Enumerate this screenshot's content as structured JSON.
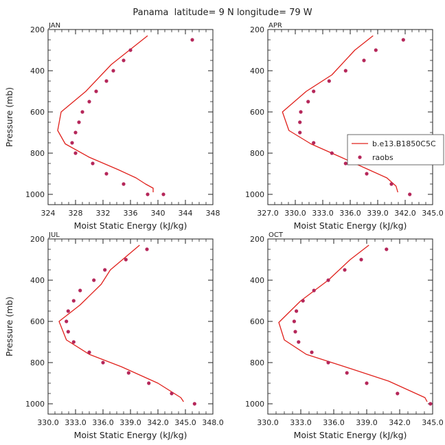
{
  "title": "Panama  latitude= 9 N longitude= 79 W",
  "colors": {
    "model": "#e0201b",
    "obs": "#b5275a",
    "axis": "#222222"
  },
  "legend": {
    "model_label": "b.e13.B1850C5C",
    "obs_label": "raobs"
  },
  "chart_data": [
    {
      "type": "line",
      "panel": "JAN",
      "xlabel": "Moist Static Energy (kJ/kg)",
      "ylabel": "Pressure (mb)",
      "xlim": [
        324,
        348
      ],
      "ylim": [
        1050,
        200
      ],
      "x_ticks": [
        324,
        328,
        332,
        336,
        340,
        344,
        348
      ],
      "x_tick_labels": [
        "324",
        "328",
        "332",
        "336",
        "340",
        "344",
        "348"
      ],
      "y_ticks": [
        200,
        400,
        600,
        800,
        1000
      ],
      "y_tick_labels": [
        "200",
        "400",
        "600",
        "800",
        "1000"
      ],
      "series": [
        {
          "name": "b.e13.B1850C5C",
          "kind": "line",
          "x": [
            338.5,
            333.2,
            329.5,
            325.9,
            325.4,
            326.5,
            330.0,
            334.2,
            336.8,
            338.2,
            339.3,
            339.3
          ],
          "y": [
            230,
            370,
            500,
            600,
            690,
            755,
            820,
            880,
            920,
            950,
            970,
            990
          ]
        },
        {
          "name": "raobs",
          "kind": "scatter",
          "x": [
            345.0,
            336.0,
            335.0,
            333.5,
            332.5,
            331.0,
            330.0,
            329.0,
            328.5,
            328.0,
            327.5,
            328.0,
            330.5,
            332.5,
            335.0,
            338.5,
            340.8
          ],
          "y": [
            250,
            300,
            350,
            400,
            450,
            500,
            550,
            600,
            650,
            700,
            750,
            800,
            850,
            900,
            950,
            1000,
            1000
          ]
        }
      ]
    },
    {
      "type": "line",
      "panel": "APR",
      "xlabel": "Moist Static Energy (kJ/kg)",
      "ylabel": "",
      "xlim": [
        327,
        345
      ],
      "ylim": [
        1050,
        200
      ],
      "x_ticks": [
        327,
        330,
        333,
        336,
        339,
        342,
        345
      ],
      "x_tick_labels": [
        "327.0",
        "330.0",
        "333.0",
        "336.0",
        "339.0",
        "342.0",
        "345.0"
      ],
      "y_ticks": [
        200,
        400,
        600,
        800,
        1000
      ],
      "y_tick_labels": [
        "200",
        "400",
        "600",
        "800",
        "1000"
      ],
      "series": [
        {
          "name": "b.e13.B1850C5C",
          "kind": "line",
          "x": [
            338.5,
            336.5,
            334.0,
            331.2,
            328.6,
            329.3,
            331.7,
            335.0,
            338.0,
            340.0,
            341.0,
            341.2
          ],
          "y": [
            230,
            300,
            420,
            500,
            600,
            690,
            755,
            820,
            880,
            920,
            960,
            990
          ]
        },
        {
          "name": "raobs",
          "kind": "scatter",
          "x": [
            341.8,
            338.8,
            337.5,
            335.5,
            333.7,
            332.0,
            331.4,
            330.6,
            330.5,
            330.5,
            332.0,
            334.0,
            335.5,
            337.8,
            340.5,
            342.5
          ],
          "y": [
            250,
            300,
            350,
            400,
            450,
            500,
            550,
            600,
            650,
            700,
            750,
            800,
            850,
            900,
            950,
            1000
          ]
        }
      ]
    },
    {
      "type": "line",
      "panel": "JUL",
      "xlabel": "Moist Static Energy (kJ/kg)",
      "ylabel": "Pressure (mb)",
      "xlim": [
        330,
        348
      ],
      "ylim": [
        1050,
        200
      ],
      "x_ticks": [
        330,
        333,
        336,
        339,
        342,
        345,
        348
      ],
      "x_tick_labels": [
        "330.0",
        "333.0",
        "336.0",
        "339.0",
        "342.0",
        "345.0",
        "348.0"
      ],
      "y_ticks": [
        200,
        400,
        600,
        800,
        1000
      ],
      "y_tick_labels": [
        "200",
        "400",
        "600",
        "800",
        "1000"
      ],
      "series": [
        {
          "name": "b.e13.B1850C5C",
          "kind": "line",
          "x": [
            340.0,
            336.8,
            335.8,
            333.5,
            331.2,
            332.0,
            334.5,
            338.0,
            342.0,
            344.5,
            344.8
          ],
          "y": [
            230,
            350,
            420,
            520,
            600,
            690,
            760,
            820,
            900,
            970,
            990
          ]
        },
        {
          "name": "raobs",
          "kind": "scatter",
          "x": [
            340.8,
            338.5,
            336.2,
            335.0,
            333.5,
            332.8,
            332.2,
            332.0,
            332.2,
            332.8,
            334.5,
            336.0,
            338.8,
            341.0,
            343.5,
            346.0
          ],
          "y": [
            250,
            300,
            350,
            400,
            450,
            500,
            550,
            600,
            650,
            700,
            750,
            800,
            850,
            900,
            950,
            1000
          ]
        }
      ]
    },
    {
      "type": "line",
      "panel": "OCT",
      "xlabel": "Moist Static Energy (kJ/kg)",
      "ylabel": "",
      "xlim": [
        330,
        345
      ],
      "ylim": [
        1050,
        200
      ],
      "x_ticks": [
        330,
        333,
        336,
        339,
        342,
        345
      ],
      "x_tick_labels": [
        "330.0",
        "333.0",
        "336.0",
        "339.0",
        "342.0",
        "345.0"
      ],
      "y_ticks": [
        200,
        400,
        600,
        800,
        1000
      ],
      "y_tick_labels": [
        "200",
        "400",
        "600",
        "800",
        "1000"
      ],
      "series": [
        {
          "name": "b.e13.B1850C5C",
          "kind": "line",
          "x": [
            339.2,
            337.5,
            335.5,
            333.0,
            331.0,
            331.5,
            333.5,
            337.0,
            341.0,
            344.3,
            344.5
          ],
          "y": [
            230,
            300,
            400,
            500,
            605,
            690,
            760,
            820,
            890,
            970,
            990
          ]
        },
        {
          "name": "raobs",
          "kind": "scatter",
          "x": [
            340.8,
            338.5,
            337.0,
            335.5,
            334.2,
            333.2,
            332.6,
            332.4,
            332.5,
            332.8,
            334.0,
            335.5,
            337.2,
            339.0,
            341.8,
            344.8
          ],
          "y": [
            250,
            300,
            350,
            400,
            450,
            500,
            550,
            600,
            650,
            700,
            750,
            800,
            850,
            900,
            950,
            1000
          ]
        }
      ]
    }
  ]
}
